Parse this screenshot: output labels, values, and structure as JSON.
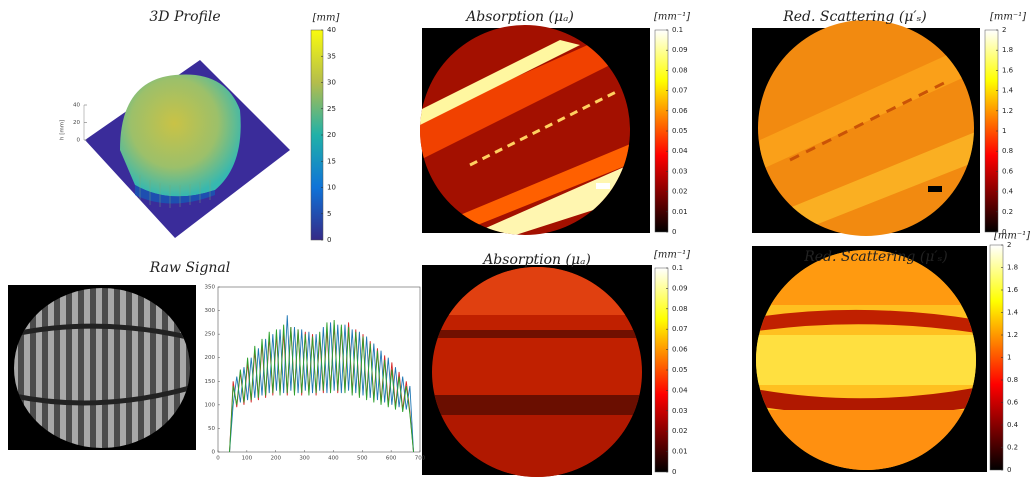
{
  "panels": {
    "profile": {
      "title": "3D Profile",
      "unit": "[mm]",
      "h_label": "h [mm]",
      "h_lim": [
        0,
        40
      ],
      "h_ticks": [
        0,
        20,
        40
      ],
      "colorbar_lim": [
        0,
        40
      ],
      "colorbar_ticks": [
        0,
        5,
        10,
        15,
        20,
        25,
        30,
        35,
        40
      ]
    },
    "raw": {
      "title": "Raw Signal"
    },
    "absorption_top": {
      "title": "Absorption (μₐ)",
      "unit": "[mm⁻¹]",
      "colorbar_lim": [
        0,
        0.1
      ],
      "colorbar_ticks": [
        0,
        0.01,
        0.02,
        0.03,
        0.04,
        0.05,
        0.06,
        0.07,
        0.08,
        0.09,
        0.1
      ]
    },
    "scattering_top": {
      "title": "Red. Scattering (μ′ₛ)",
      "unit": "[mm⁻¹]",
      "colorbar_lim": [
        0,
        2
      ],
      "colorbar_ticks": [
        0,
        0.2,
        0.4,
        0.6,
        0.8,
        1,
        1.2,
        1.4,
        1.6,
        1.8,
        2
      ]
    },
    "absorption_bottom": {
      "title": "Absorption (μₐ)",
      "unit": "[mm⁻¹]",
      "colorbar_lim": [
        0,
        0.1
      ],
      "colorbar_ticks": [
        0,
        0.01,
        0.02,
        0.03,
        0.04,
        0.05,
        0.06,
        0.07,
        0.08,
        0.09,
        0.1
      ]
    },
    "scattering_bottom": {
      "title": "Red. Scattering (μ′ₛ)",
      "unit": "[mm⁻¹]",
      "colorbar_lim": [
        0,
        2
      ],
      "colorbar_ticks": [
        0,
        0.2,
        0.4,
        0.6,
        0.8,
        1,
        1.2,
        1.4,
        1.6,
        1.8,
        2
      ]
    }
  },
  "chart_data": {
    "type": "line",
    "x": [
      40,
      52.5,
      65,
      77.5,
      90,
      102.5,
      115,
      127.5,
      140,
      152.5,
      165,
      177.5,
      190,
      202.5,
      215,
      227.5,
      240,
      252.5,
      265,
      277.5,
      290,
      302.5,
      315,
      327.5,
      340,
      352.5,
      365,
      377.5,
      390,
      402.5,
      415,
      427.5,
      440,
      452.5,
      465,
      477.5,
      490,
      502.5,
      515,
      527.5,
      540,
      552.5,
      565,
      577.5,
      590,
      602.5,
      615,
      627.5,
      640,
      652.5,
      665,
      677.5
    ],
    "series": [
      {
        "color": "#d62728",
        "values": [
          0,
          150,
          95,
          170,
          100,
          190,
          105,
          215,
          110,
          230,
          115,
          245,
          120,
          250,
          125,
          255,
          120,
          265,
          125,
          260,
          120,
          255,
          125,
          250,
          120,
          245,
          125,
          260,
          130,
          270,
          125,
          265,
          130,
          275,
          125,
          260,
          120,
          250,
          115,
          235,
          110,
          220,
          105,
          205,
          100,
          190,
          95,
          170,
          90,
          150,
          85,
          0
        ]
      },
      {
        "color": "#1f77b4",
        "values": [
          0,
          100,
          160,
          105,
          180,
          110,
          200,
          115,
          220,
          120,
          240,
          125,
          250,
          130,
          260,
          125,
          290,
          130,
          265,
          125,
          260,
          130,
          255,
          125,
          250,
          130,
          265,
          125,
          275,
          130,
          270,
          125,
          270,
          130,
          260,
          125,
          255,
          120,
          245,
          115,
          230,
          110,
          215,
          105,
          200,
          100,
          180,
          95,
          160,
          90,
          140,
          0
        ]
      },
      {
        "color": "#2ca02c",
        "values": [
          0,
          140,
          100,
          175,
          105,
          200,
          110,
          225,
          115,
          240,
          120,
          255,
          125,
          260,
          120,
          270,
          125,
          265,
          120,
          260,
          125,
          250,
          120,
          245,
          125,
          255,
          130,
          275,
          125,
          280,
          130,
          270,
          125,
          265,
          120,
          255,
          115,
          245,
          110,
          230,
          105,
          215,
          100,
          195,
          95,
          175,
          90,
          160,
          85,
          140,
          80,
          0
        ]
      }
    ],
    "xlim": [
      0,
      700
    ],
    "ylim": [
      0,
      350
    ],
    "xticks": [
      0,
      100,
      200,
      300,
      400,
      500,
      600,
      700
    ],
    "yticks": [
      0,
      50,
      100,
      150,
      200,
      250,
      300,
      350
    ]
  }
}
